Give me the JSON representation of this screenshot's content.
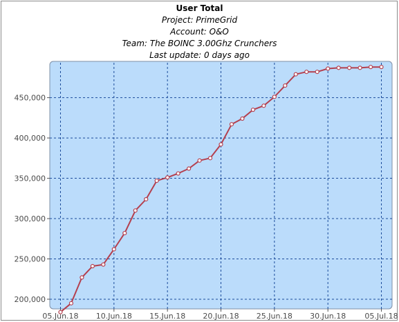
{
  "title": "User Total",
  "subtitles": {
    "project": "Project: PrimeGrid",
    "account": "Account: O&O",
    "team": "Team: The BOINC 3.00Ghz Crunchers",
    "last_update": "Last update: 0 days ago"
  },
  "colors": {
    "plot_background": "#bbdcfb",
    "line": "#b43f4e",
    "grid": "#1a4a9a",
    "tick_text": "#4a4a4a"
  },
  "chart_data": {
    "type": "line",
    "title": "User Total",
    "xlabel": "",
    "ylabel": "",
    "x_ticks": [
      "05.Jun.18",
      "10.Jun.18",
      "15.Jun.18",
      "20.Jun.18",
      "25.Jun.18",
      "30.Jun.18",
      "05.Jul.18"
    ],
    "y_ticks": [
      "200,000",
      "250,000",
      "300,000",
      "350,000",
      "400,000",
      "450,000"
    ],
    "y_tick_values": [
      200000,
      250000,
      300000,
      350000,
      400000,
      450000
    ],
    "xlim": [
      "2018-06-04",
      "2018-07-06"
    ],
    "ylim": [
      188000,
      495000
    ],
    "grid": true,
    "series": [
      {
        "x": [
          "2018-06-05",
          "2018-06-06",
          "2018-06-07",
          "2018-06-08",
          "2018-06-09",
          "2018-06-10",
          "2018-06-11",
          "2018-06-12",
          "2018-06-13",
          "2018-06-14",
          "2018-06-15",
          "2018-06-16",
          "2018-06-17",
          "2018-06-18",
          "2018-06-19",
          "2018-06-20",
          "2018-06-21",
          "2018-06-22",
          "2018-06-23",
          "2018-06-24",
          "2018-06-25",
          "2018-06-26",
          "2018-06-27",
          "2018-06-28",
          "2018-06-29",
          "2018-06-30",
          "2018-07-01",
          "2018-07-02",
          "2018-07-03",
          "2018-07-04",
          "2018-07-05"
        ],
        "y": [
          184000,
          195000,
          227000,
          241000,
          243000,
          262000,
          282000,
          310000,
          324000,
          347000,
          351000,
          356000,
          362000,
          372000,
          375000,
          392000,
          417000,
          424000,
          435000,
          440000,
          451000,
          465000,
          479000,
          482000,
          482000,
          486000,
          487000,
          487000,
          487000,
          488000,
          488000
        ]
      }
    ]
  }
}
